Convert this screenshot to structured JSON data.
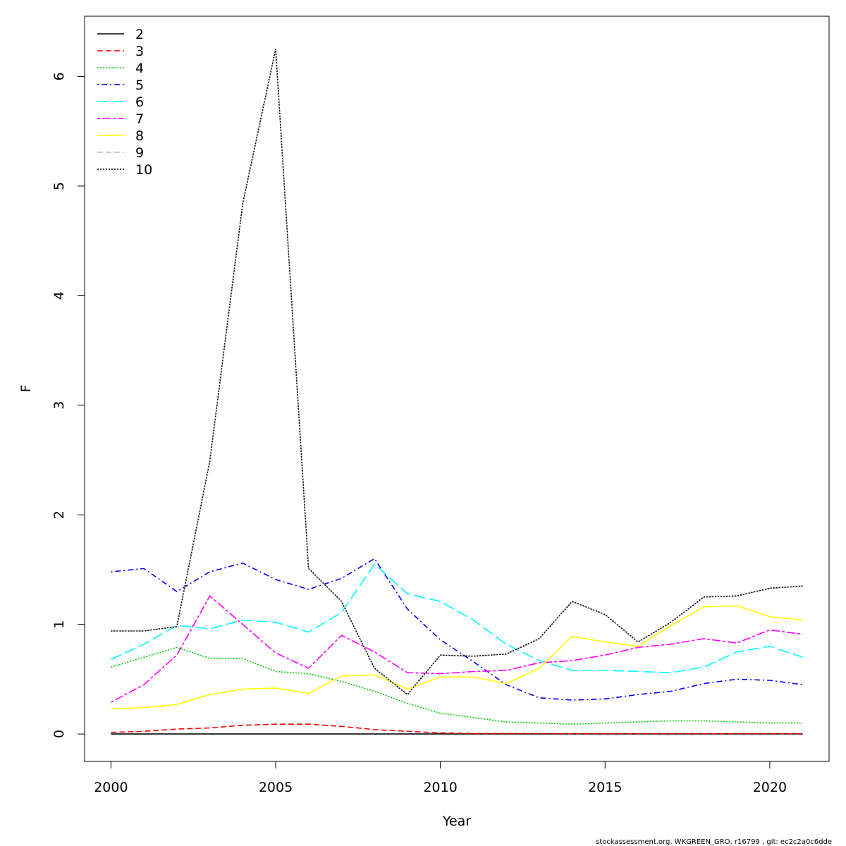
{
  "chart_data": {
    "type": "line",
    "xlabel": "Year",
    "ylabel": "F",
    "xlim": [
      1999.2,
      2021.8
    ],
    "ylim": [
      -0.25,
      6.55
    ],
    "x_ticks": [
      "2000",
      "2005",
      "2010",
      "2015",
      "2020"
    ],
    "y_ticks": [
      "0",
      "1",
      "2",
      "3",
      "4",
      "5",
      "6"
    ],
    "legend_position": "top-left",
    "grid": false,
    "x": [
      2000,
      2001,
      2002,
      2003,
      2004,
      2005,
      2006,
      2007,
      2008,
      2009,
      2010,
      2011,
      2012,
      2013,
      2014,
      2015,
      2016,
      2017,
      2018,
      2019,
      2020,
      2021
    ],
    "series": [
      {
        "name": "2",
        "color": "#000000",
        "dash": "solid",
        "values": [
          0.0,
          0.0,
          0.0,
          0.0,
          0.0,
          0.0,
          0.0,
          0.0,
          0.0,
          0.0,
          0.0,
          0.0,
          0.0,
          0.0,
          0.0,
          0.0,
          0.0,
          0.0,
          0.0,
          0.0,
          0.0,
          0.0
        ]
      },
      {
        "name": "3",
        "color": "#ff0000",
        "dash": "dashed",
        "values": [
          0.015,
          0.025,
          0.045,
          0.055,
          0.08,
          0.09,
          0.09,
          0.07,
          0.04,
          0.025,
          0.01,
          0.005,
          0.005,
          0.005,
          0.003,
          0.003,
          0.003,
          0.003,
          0.003,
          0.003,
          0.003,
          0.003
        ]
      },
      {
        "name": "4",
        "color": "#00cd00",
        "dash": "dotted",
        "values": [
          0.61,
          0.7,
          0.79,
          0.69,
          0.69,
          0.57,
          0.55,
          0.48,
          0.39,
          0.28,
          0.19,
          0.15,
          0.11,
          0.1,
          0.09,
          0.1,
          0.11,
          0.12,
          0.12,
          0.11,
          0.1,
          0.1
        ]
      },
      {
        "name": "5",
        "color": "#0000ff",
        "dash": "dotdash",
        "values": [
          1.48,
          1.51,
          1.3,
          1.48,
          1.56,
          1.41,
          1.32,
          1.42,
          1.6,
          1.14,
          0.86,
          0.66,
          0.45,
          0.33,
          0.31,
          0.32,
          0.36,
          0.39,
          0.46,
          0.5,
          0.49,
          0.45
        ]
      },
      {
        "name": "6",
        "color": "#00ffff",
        "dash": "longdash",
        "values": [
          0.68,
          0.82,
          0.99,
          0.96,
          1.04,
          1.02,
          0.93,
          1.11,
          1.55,
          1.28,
          1.21,
          1.04,
          0.82,
          0.67,
          0.58,
          0.58,
          0.57,
          0.56,
          0.61,
          0.75,
          0.8,
          0.7
        ]
      },
      {
        "name": "7",
        "color": "#ff00ff",
        "dash": "twodash",
        "values": [
          0.29,
          0.45,
          0.72,
          1.26,
          1.0,
          0.74,
          0.6,
          0.9,
          0.75,
          0.56,
          0.55,
          0.57,
          0.58,
          0.65,
          0.67,
          0.72,
          0.79,
          0.82,
          0.87,
          0.83,
          0.95,
          0.91
        ]
      },
      {
        "name": "8",
        "color": "#ffff00",
        "dash": "solid",
        "values": [
          0.23,
          0.24,
          0.27,
          0.36,
          0.41,
          0.42,
          0.37,
          0.53,
          0.54,
          0.41,
          0.52,
          0.52,
          0.46,
          0.6,
          0.89,
          0.84,
          0.8,
          0.99,
          1.16,
          1.17,
          1.07,
          1.04
        ]
      },
      {
        "name": "9",
        "color": "#bebebe",
        "dash": "dashed",
        "values": [
          0.94,
          0.94,
          0.98,
          2.49,
          4.84,
          6.25,
          1.51,
          1.21,
          0.6,
          0.36,
          0.72,
          0.71,
          0.73,
          0.87,
          1.21,
          1.09,
          0.84,
          1.02,
          1.25,
          1.26,
          1.33,
          1.35
        ]
      },
      {
        "name": "10",
        "color": "#000000",
        "dash": "dotted",
        "values": [
          0.94,
          0.94,
          0.98,
          2.49,
          4.84,
          6.25,
          1.51,
          1.21,
          0.6,
          0.36,
          0.72,
          0.71,
          0.73,
          0.87,
          1.21,
          1.09,
          0.84,
          1.02,
          1.25,
          1.26,
          1.33,
          1.35
        ]
      }
    ]
  },
  "footer": {
    "text": "stockassessment.org, WKGREEN_GRO, r16799 , git: ec2c2a0c6dde"
  }
}
